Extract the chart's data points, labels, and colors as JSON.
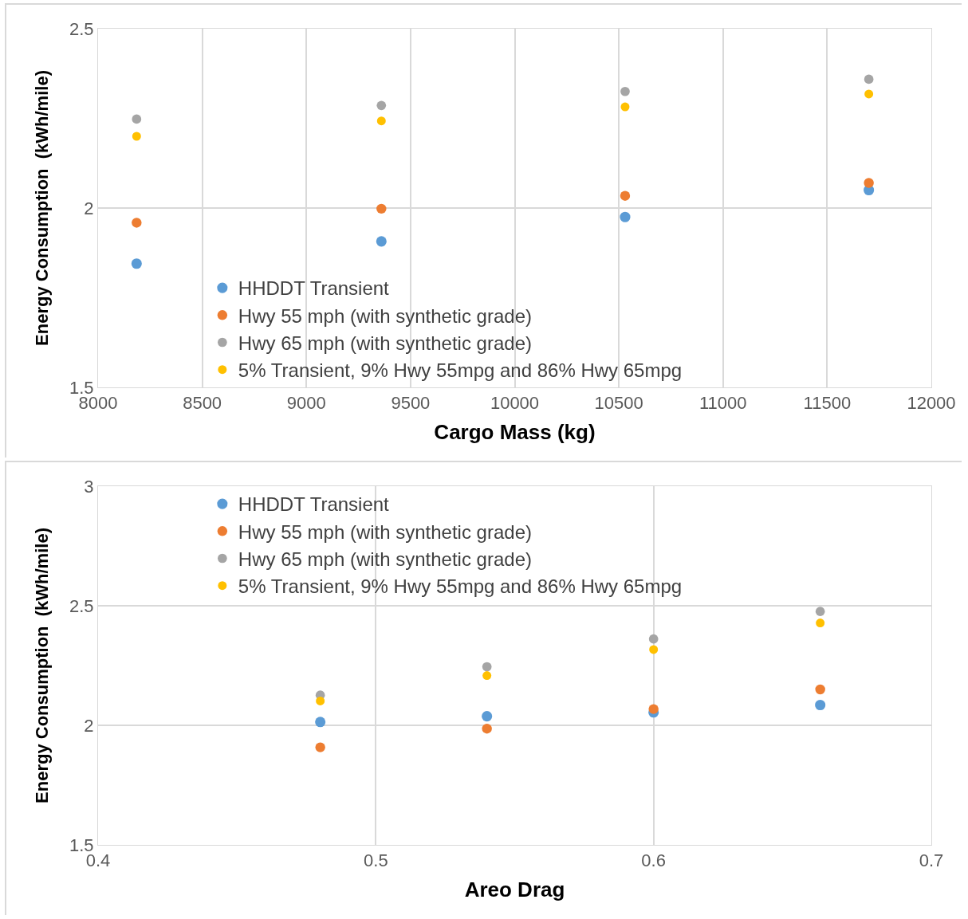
{
  "chart_data": [
    {
      "type": "scatter",
      "xlabel": "Cargo Mass (kg)",
      "ylabel": "Energy Consumption  (kWh/mile)",
      "x": [
        8185,
        9360,
        10530,
        11700
      ],
      "xlim": [
        8000,
        12000
      ],
      "xticks": [
        8000,
        8500,
        9000,
        9500,
        10000,
        10500,
        11000,
        11500,
        12000
      ],
      "ylim": [
        1.5,
        2.5
      ],
      "yticks": [
        1.5,
        2,
        2.5
      ],
      "grid": true,
      "legend": "bottom left",
      "marker": "circle",
      "series": [
        {
          "name": "HHDDT Transient",
          "color": "#5b9bd5",
          "values": [
            1.845,
            1.907,
            1.975,
            2.05
          ]
        },
        {
          "name": "Hwy 55 mph (with synthetic grade)",
          "color": "#ed7d31",
          "values": [
            1.959,
            1.998,
            2.034,
            2.07
          ]
        },
        {
          "name": "Hwy 65 mph (with synthetic grade)",
          "color": "#a5a5a5",
          "values": [
            2.248,
            2.286,
            2.325,
            2.359
          ]
        },
        {
          "name": "5% Transient, 9% Hwy 55mpg and 86% Hwy 65mpg",
          "color": "#ffc000",
          "values": [
            2.2,
            2.243,
            2.282,
            2.318
          ]
        }
      ]
    },
    {
      "type": "scatter",
      "xlabel": "Areo Drag",
      "ylabel": "Energy Consumption  (kWh/mile)",
      "x": [
        0.48,
        0.54,
        0.6,
        0.66
      ],
      "xlim": [
        0.4,
        0.7
      ],
      "xticks": [
        0.4,
        0.5,
        0.6,
        0.7
      ],
      "ylim": [
        1.5,
        3
      ],
      "yticks": [
        1.5,
        2,
        2.5,
        3
      ],
      "grid": true,
      "legend": "top left",
      "marker": "circle",
      "series": [
        {
          "name": "HHDDT Transient",
          "color": "#5b9bd5",
          "values": [
            2.014,
            2.038,
            2.054,
            2.085
          ]
        },
        {
          "name": "Hwy 55 mph (with synthetic grade)",
          "color": "#ed7d31",
          "values": [
            1.908,
            1.986,
            2.068,
            2.15
          ]
        },
        {
          "name": "Hwy 65 mph (with synthetic grade)",
          "color": "#a5a5a5",
          "values": [
            2.126,
            2.245,
            2.361,
            2.476
          ]
        },
        {
          "name": "5% Transient, 9% Hwy 55mpg and 86% Hwy 65mpg",
          "color": "#ffc000",
          "values": [
            2.102,
            2.208,
            2.317,
            2.428
          ]
        }
      ]
    }
  ]
}
